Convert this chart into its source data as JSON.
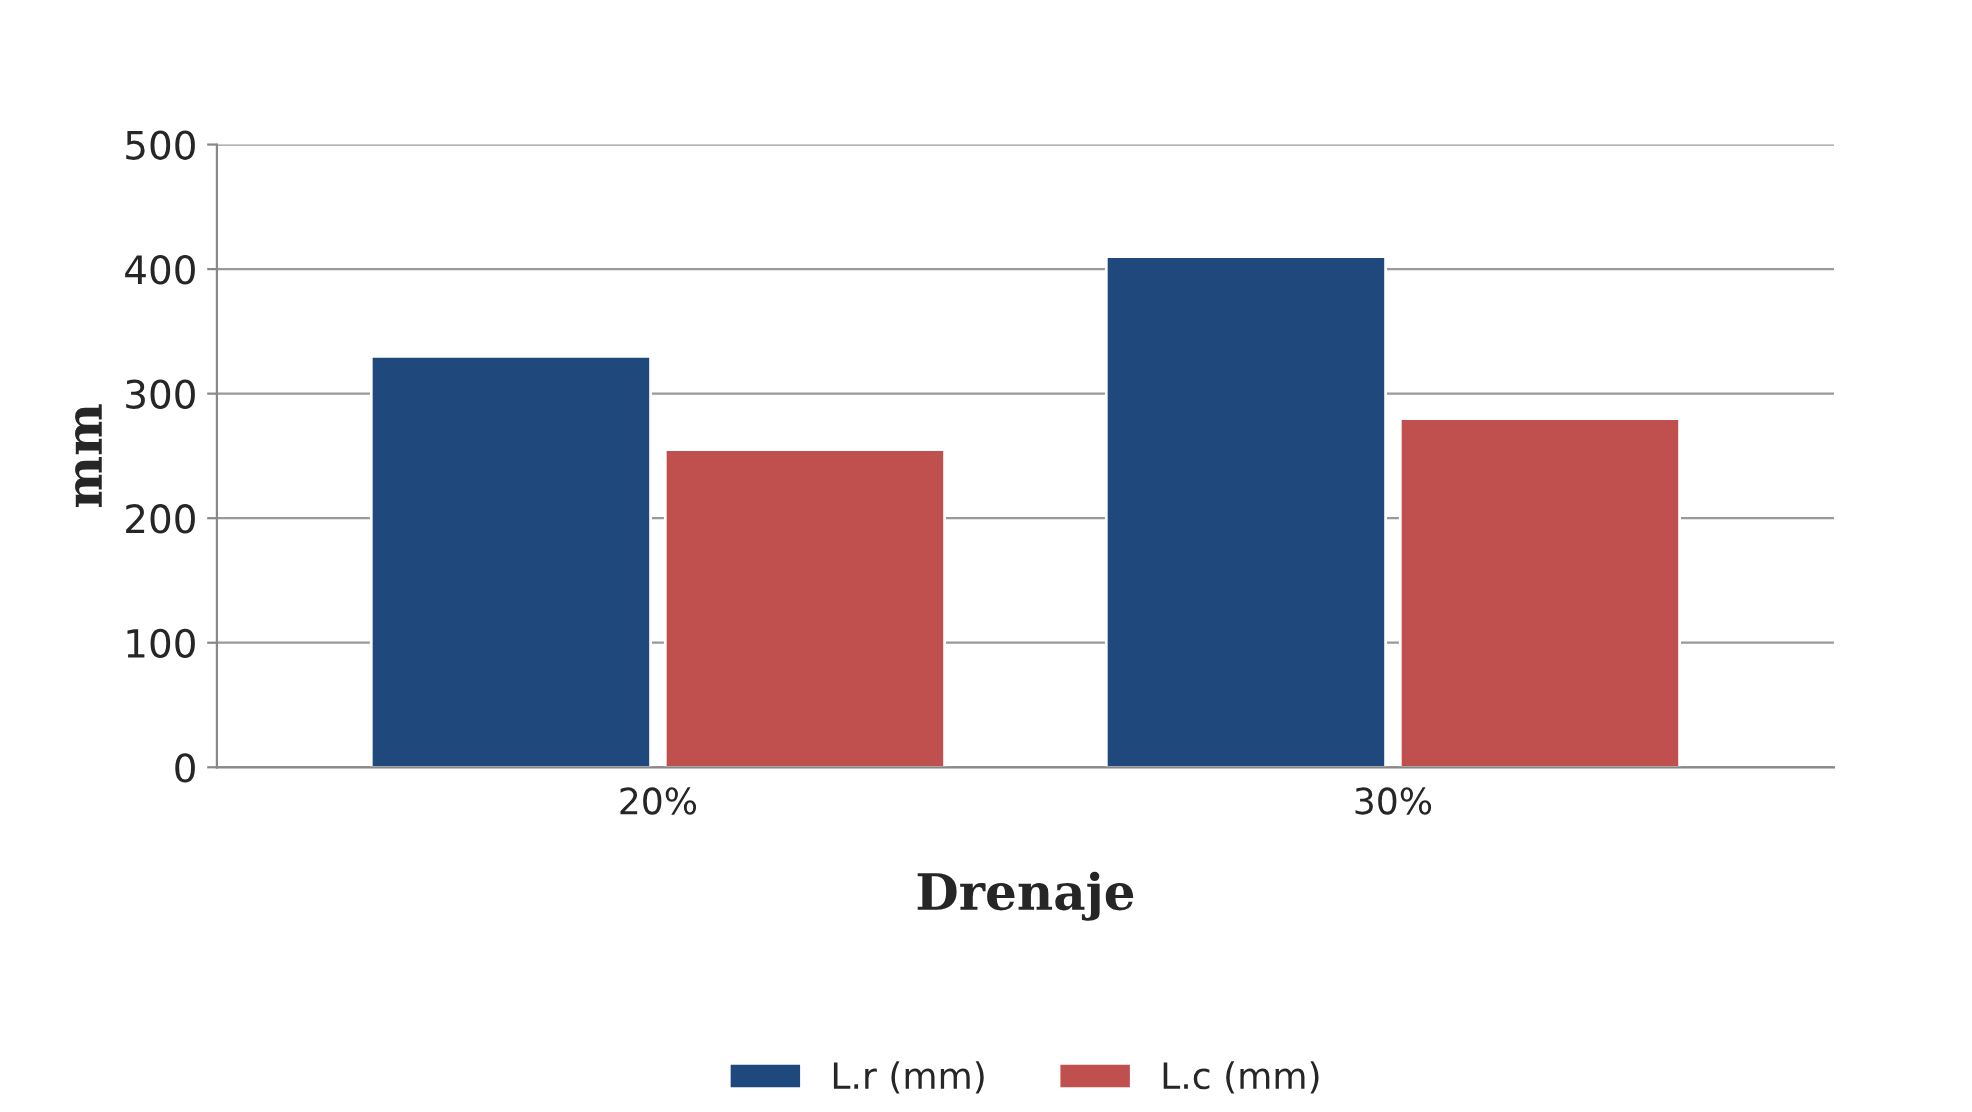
{
  "chart_data": {
    "type": "bar",
    "xlabel": "Drenaje",
    "ylabel": "mm",
    "categories": [
      "20%",
      "30%"
    ],
    "series": [
      {
        "name": "L.r (mm)",
        "color": "#1f497d",
        "values": [
          330,
          410
        ]
      },
      {
        "name": "L.c (mm)",
        "color": "#c0504d",
        "values": [
          255,
          280
        ]
      }
    ],
    "ylim": [
      0,
      500
    ],
    "yticks": [
      0,
      100,
      200,
      300,
      400,
      500
    ],
    "grid": "y",
    "legend": "bottom"
  }
}
